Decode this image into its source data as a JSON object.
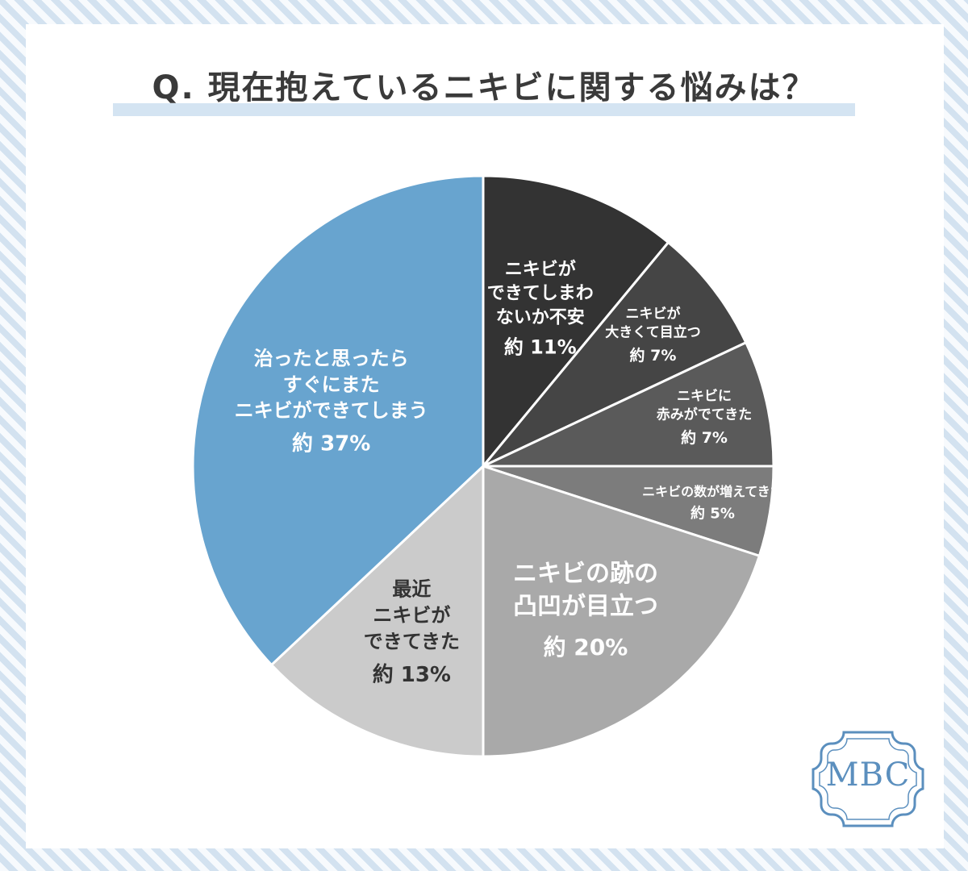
{
  "title": "Q. 現在抱えているニキビに関する悩みは？",
  "logo": {
    "text": "MBC"
  },
  "colors": {
    "background_stripes": [
      "#f7fafd",
      "#d3e2f0"
    ],
    "card": "#ffffff",
    "title_underline": "#d4e4f2",
    "logo": "#5b8fbe"
  },
  "chart_data": {
    "type": "pie",
    "title": "Q. 現在抱えているニキビに関する悩みは？",
    "start": "12 o'clock",
    "direction": "clockwise",
    "legend": "none (labels inside slices)",
    "slices": [
      {
        "label": [
          "ニキビが",
          "できてしまわ",
          "ないか不安"
        ],
        "value": 11,
        "value_text": "約 11%",
        "color": "#333333",
        "text_color": "#ffffff"
      },
      {
        "label": [
          "ニキビが",
          "大きくて目立つ"
        ],
        "value": 7,
        "value_text": "約 7%",
        "color": "#454545",
        "text_color": "#ffffff"
      },
      {
        "label": [
          "ニキビに",
          "赤みがでてきた"
        ],
        "value": 7,
        "value_text": "約 7%",
        "color": "#5a5a5a",
        "text_color": "#ffffff"
      },
      {
        "label": [
          "ニキビの数が増えてきた"
        ],
        "value": 5,
        "value_text": "約 5%",
        "color": "#7c7c7c",
        "text_color": "#ffffff"
      },
      {
        "label": [
          "ニキビの跡の",
          "凸凹が目立つ"
        ],
        "value": 20,
        "value_text": "約 20%",
        "color": "#a9a9a9",
        "text_color": "#ffffff"
      },
      {
        "label": [
          "最近",
          "ニキビが",
          "できてきた"
        ],
        "value": 13,
        "value_text": "約 13%",
        "color": "#cbcbcb",
        "text_color": "#333333"
      },
      {
        "label": [
          "治ったと思ったら",
          "すぐにまた",
          "ニキビができてしまう"
        ],
        "value": 37,
        "value_text": "約 37%",
        "color": "#68a4cf",
        "text_color": "#ffffff"
      }
    ]
  }
}
